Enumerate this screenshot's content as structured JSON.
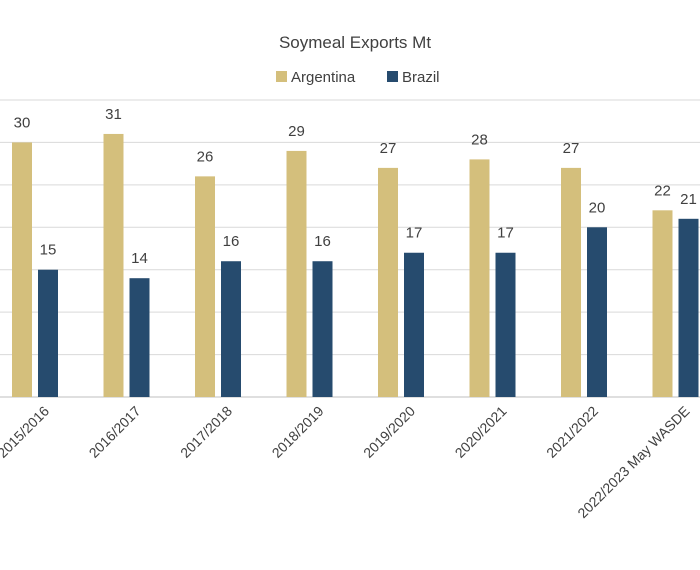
{
  "chart_data": {
    "type": "bar",
    "title": "Soymeal Exports Mt",
    "xlabel": "",
    "ylabel": "",
    "categories": [
      "2015/2016",
      "2016/2017",
      "2017/2018",
      "2018/2019",
      "2019/2020",
      "2020/2021",
      "2021/2022",
      "2022/2023 May WASDE"
    ],
    "series": [
      {
        "name": "Argentina",
        "color": "#d4bf7c",
        "values": [
          30,
          31,
          26,
          29,
          27,
          28,
          27,
          22
        ]
      },
      {
        "name": "Brazil",
        "color": "#264b6e",
        "values": [
          15,
          14,
          16,
          16,
          17,
          17,
          20,
          21
        ]
      }
    ],
    "ylim": [
      0,
      35
    ],
    "grid": true,
    "legend": "top-center"
  }
}
